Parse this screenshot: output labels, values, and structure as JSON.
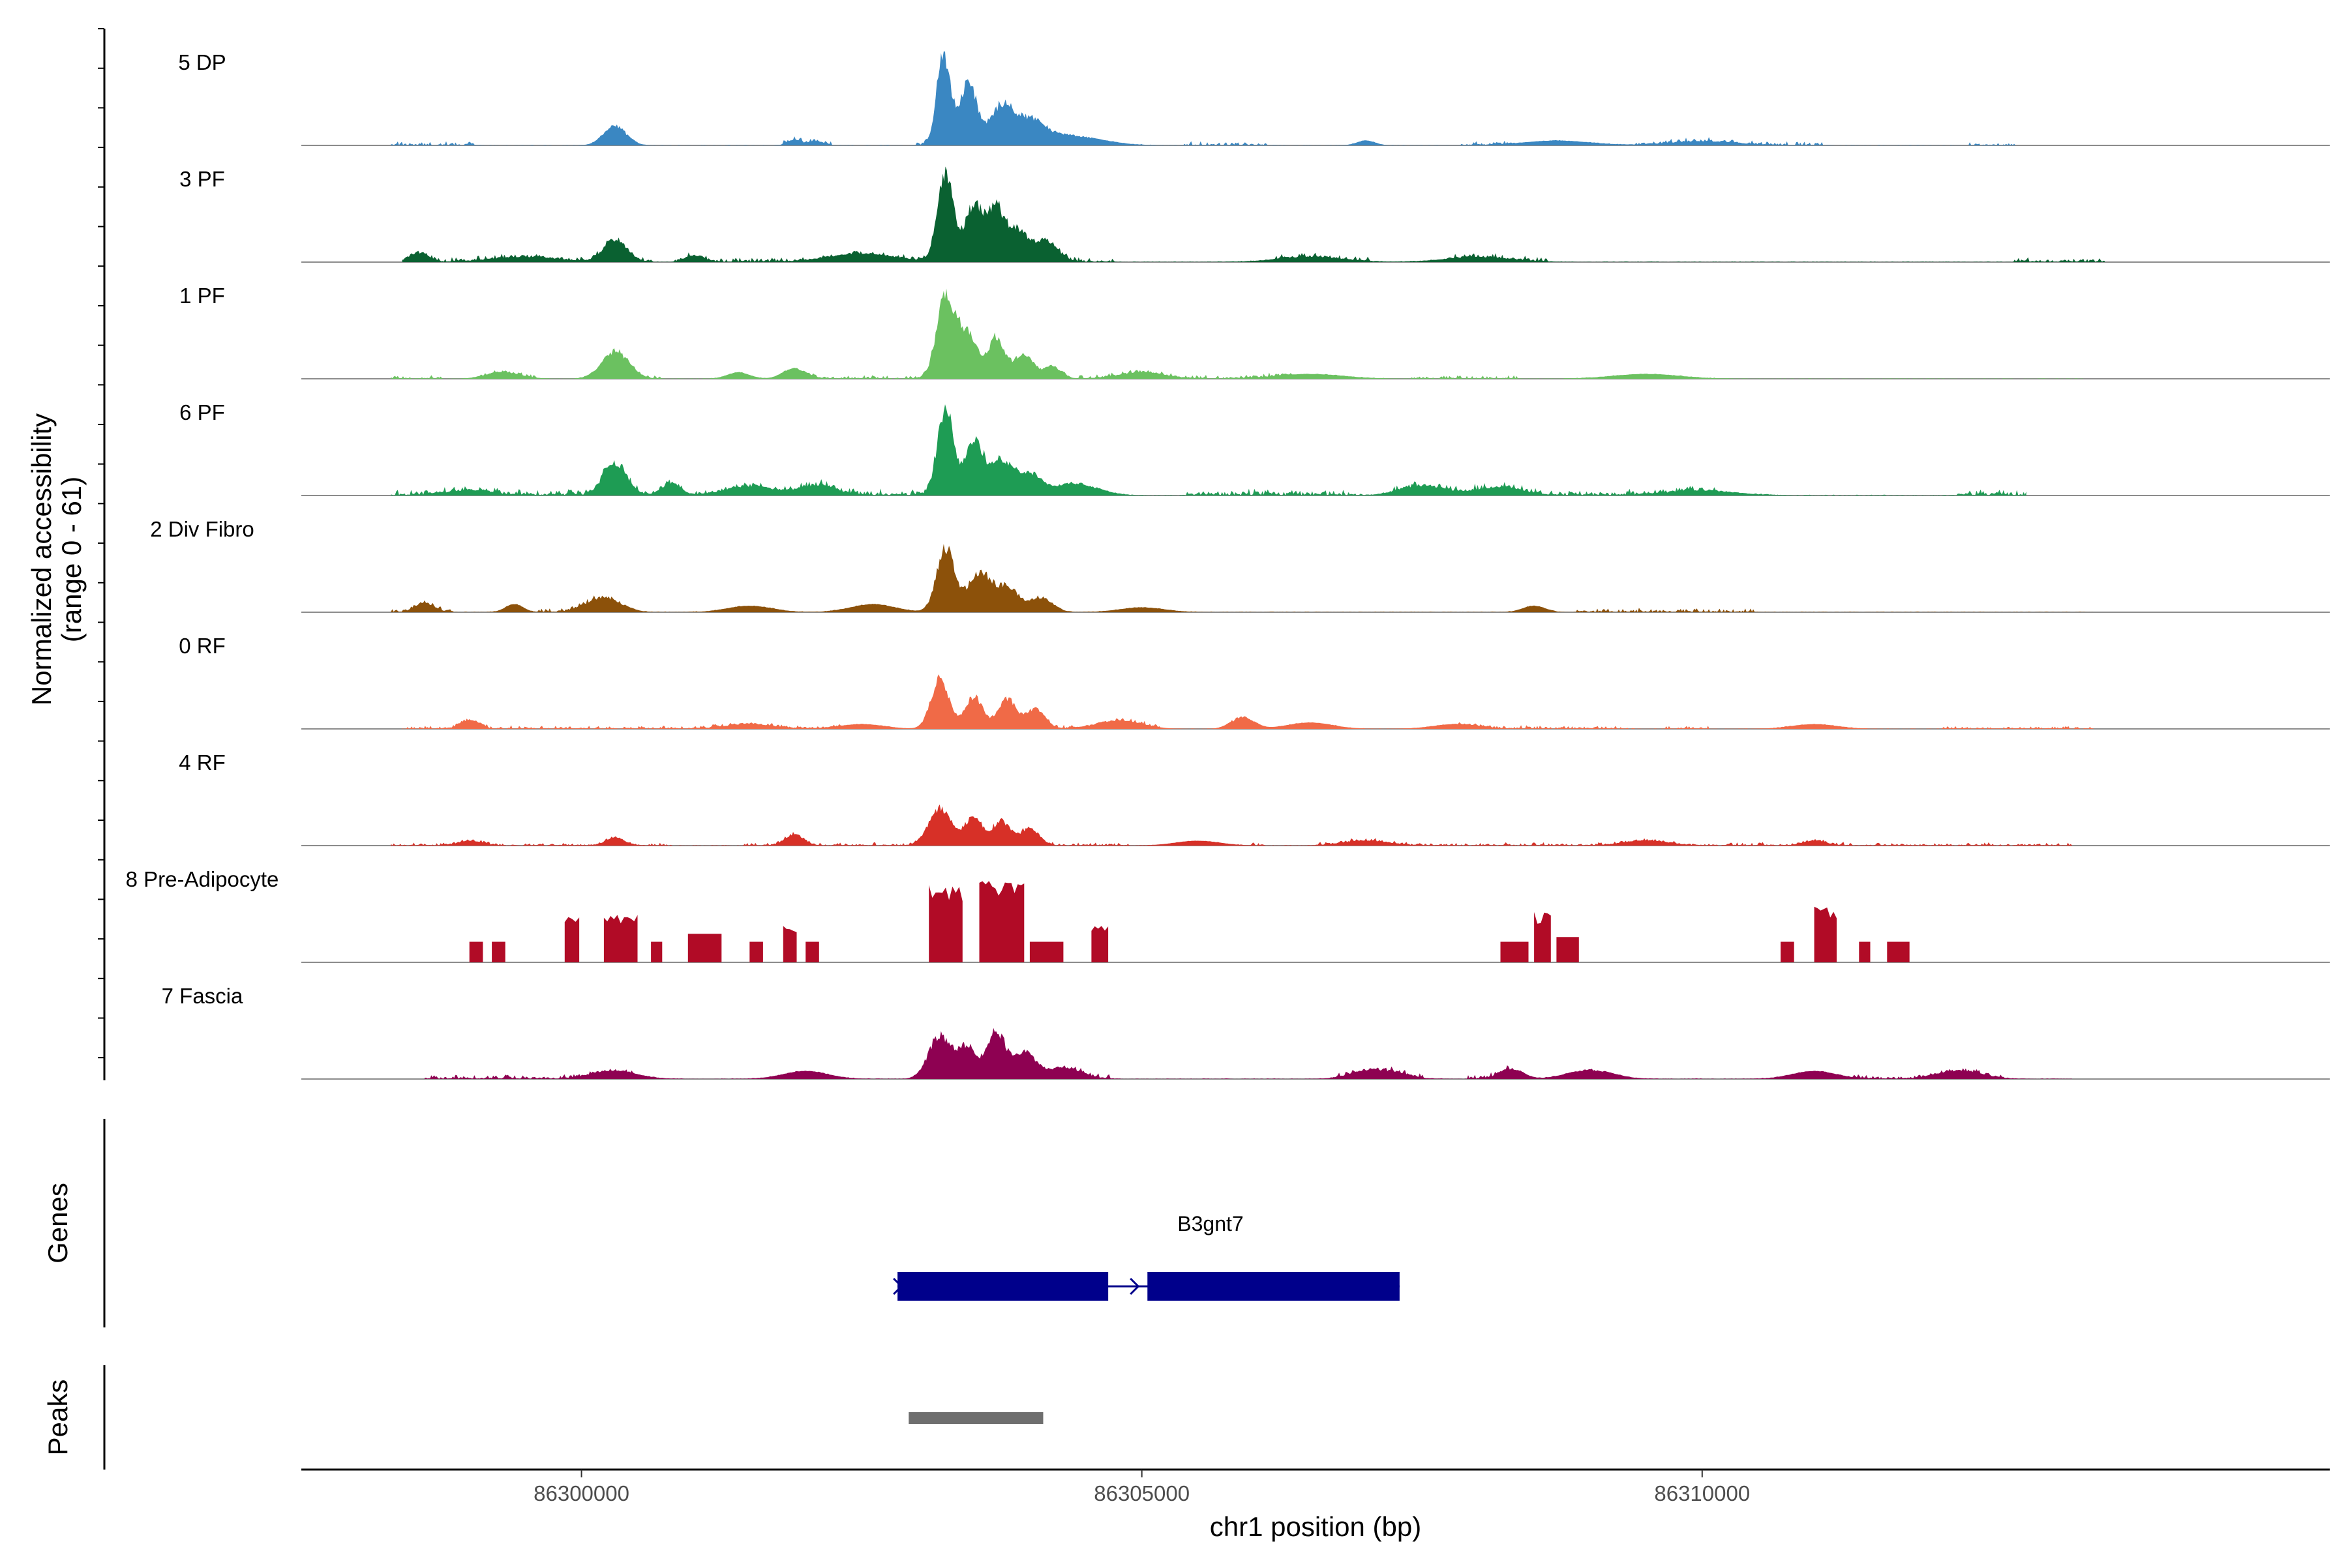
{
  "chart_data": {
    "type": "area",
    "title": "",
    "ylabel_line1": "Normalized accessibility",
    "ylabel_line2": "(range 0 - 61)",
    "yrange": [
      0,
      61
    ],
    "xlabel": "chr1 position (bp)",
    "xlim": [
      86297500,
      86315600
    ],
    "x_ticks": [
      86300000,
      86305000,
      86310000
    ],
    "x_tick_labels": [
      "86300000",
      "86305000",
      "86310000"
    ],
    "tracks": [
      {
        "name": "5 DP",
        "color": "#3A87C2",
        "mode": "smooth",
        "extent": [
          86298300,
          86312800
        ],
        "base": 0.3,
        "noise": 1.3,
        "gap_prob": 0.22,
        "peaks": [
          [
            86300300,
            100,
            13
          ],
          [
            86303230,
            60,
            61
          ],
          [
            86303450,
            80,
            42
          ],
          [
            86303750,
            100,
            26
          ],
          [
            86304000,
            120,
            14
          ],
          [
            86304300,
            300,
            7
          ],
          [
            86301900,
            60,
            3.5
          ],
          [
            86302100,
            60,
            2.5
          ],
          [
            86310000,
            300,
            2.5
          ],
          [
            86307000,
            80,
            3
          ],
          [
            86308700,
            300,
            3
          ]
        ]
      },
      {
        "name": "3 PF",
        "color": "#0A6131",
        "mode": "smooth",
        "extent": [
          86298400,
          86313600
        ],
        "base": 0.4,
        "noise": 1.4,
        "gap_prob": 0.15,
        "peaks": [
          [
            86298550,
            80,
            6
          ],
          [
            86300300,
            100,
            15
          ],
          [
            86301000,
            80,
            4
          ],
          [
            86303250,
            70,
            61
          ],
          [
            86303500,
            80,
            37
          ],
          [
            86303700,
            80,
            34
          ],
          [
            86303900,
            90,
            20
          ],
          [
            86304150,
            100,
            14
          ],
          [
            86302500,
            300,
            5
          ],
          [
            86299500,
            300,
            3
          ],
          [
            86306500,
            300,
            3
          ],
          [
            86308000,
            300,
            3
          ]
        ]
      },
      {
        "name": "1 PF",
        "color": "#6BC160",
        "mode": "smooth",
        "extent": [
          86298300,
          86313400
        ],
        "base": 0.3,
        "noise": 1.2,
        "gap_prob": 0.2,
        "peaks": [
          [
            86300300,
            120,
            18
          ],
          [
            86301900,
            100,
            7
          ],
          [
            86303250,
            80,
            57
          ],
          [
            86303450,
            80,
            30
          ],
          [
            86303700,
            80,
            26
          ],
          [
            86303950,
            80,
            17
          ],
          [
            86304200,
            80,
            8
          ],
          [
            86299300,
            150,
            4
          ],
          [
            86301400,
            100,
            4
          ],
          [
            86305000,
            200,
            4
          ],
          [
            86306500,
            300,
            3
          ],
          [
            86309500,
            300,
            3
          ]
        ]
      },
      {
        "name": "6 PF",
        "color": "#1E9C54",
        "mode": "smooth",
        "extent": [
          86298300,
          86312900
        ],
        "base": 0.6,
        "noise": 2.0,
        "gap_prob": 0.12,
        "peaks": [
          [
            86300300,
            100,
            22
          ],
          [
            86300800,
            80,
            8
          ],
          [
            86301500,
            200,
            6
          ],
          [
            86302100,
            150,
            7
          ],
          [
            86303250,
            70,
            61
          ],
          [
            86303500,
            80,
            36
          ],
          [
            86303750,
            100,
            24
          ],
          [
            86304000,
            100,
            14
          ],
          [
            86304400,
            200,
            8
          ],
          [
            86307500,
            200,
            6
          ],
          [
            86308200,
            200,
            5
          ],
          [
            86299000,
            200,
            3
          ],
          [
            86310000,
            300,
            3
          ]
        ]
      },
      {
        "name": "2 Div Fibro",
        "color": "#8C510A",
        "mode": "smooth",
        "extent": [
          86298300,
          86313500
        ],
        "base": 0.4,
        "noise": 1.3,
        "gap_prob": 0.2,
        "peaks": [
          [
            86298600,
            80,
            6
          ],
          [
            86299400,
            80,
            5
          ],
          [
            86300200,
            150,
            10
          ],
          [
            86303250,
            80,
            44
          ],
          [
            86303550,
            100,
            27
          ],
          [
            86303800,
            100,
            17
          ],
          [
            86304100,
            100,
            10
          ],
          [
            86301500,
            200,
            4
          ],
          [
            86302600,
            200,
            5
          ],
          [
            86305000,
            200,
            3
          ],
          [
            86308500,
            100,
            4
          ]
        ]
      },
      {
        "name": "0 RF",
        "color": "#F06A47",
        "mode": "smooth",
        "extent": [
          86298400,
          86313500
        ],
        "base": 0.3,
        "noise": 1.1,
        "gap_prob": 0.2,
        "peaks": [
          [
            86299000,
            80,
            6
          ],
          [
            86303200,
            80,
            34
          ],
          [
            86303500,
            80,
            22
          ],
          [
            86303800,
            80,
            20
          ],
          [
            86304050,
            80,
            14
          ],
          [
            86305900,
            100,
            8
          ],
          [
            86301500,
            200,
            3
          ],
          [
            86302500,
            200,
            3
          ],
          [
            86304800,
            200,
            5
          ],
          [
            86306500,
            200,
            4
          ],
          [
            86307800,
            200,
            3
          ],
          [
            86311000,
            200,
            3
          ]
        ]
      },
      {
        "name": "4 RF",
        "color": "#D73027",
        "mode": "smooth",
        "extent": [
          86298300,
          86313300
        ],
        "base": 0.3,
        "noise": 1.0,
        "gap_prob": 0.22,
        "peaks": [
          [
            86300300,
            80,
            5
          ],
          [
            86301900,
            80,
            7
          ],
          [
            86303200,
            100,
            25
          ],
          [
            86303500,
            80,
            18
          ],
          [
            86303750,
            80,
            16
          ],
          [
            86304000,
            80,
            12
          ],
          [
            86299000,
            100,
            3
          ],
          [
            86305500,
            200,
            3
          ],
          [
            86307000,
            200,
            3
          ],
          [
            86309500,
            200,
            3
          ],
          [
            86311000,
            100,
            3
          ]
        ]
      },
      {
        "name": "8 Pre-Adipocyte",
        "color": "#B10B26",
        "mode": "block",
        "extent": [
          86298600,
          86313300
        ],
        "base": 0,
        "noise": 0,
        "gap_prob": 0,
        "blocks": [
          [
            86299000,
            86299120,
            13
          ],
          [
            86299200,
            86299320,
            13
          ],
          [
            86299850,
            86299980,
            30
          ],
          [
            86300200,
            86300500,
            30
          ],
          [
            86300620,
            86300720,
            13
          ],
          [
            86300950,
            86301250,
            18
          ],
          [
            86301500,
            86301620,
            13
          ],
          [
            86301800,
            86301920,
            23
          ],
          [
            86302000,
            86302120,
            13
          ],
          [
            86303100,
            86303400,
            49
          ],
          [
            86303550,
            86303950,
            52
          ],
          [
            86304000,
            86304300,
            13
          ],
          [
            86304550,
            86304700,
            23
          ],
          [
            86308200,
            86308450,
            13
          ],
          [
            86308500,
            86308650,
            32
          ],
          [
            86308700,
            86308900,
            16
          ],
          [
            86310700,
            86310820,
            13
          ],
          [
            86311000,
            86311200,
            36
          ],
          [
            86311400,
            86311500,
            13
          ],
          [
            86311650,
            86311850,
            13
          ]
        ]
      },
      {
        "name": "7 Fascia",
        "color": "#8E0152",
        "mode": "smooth",
        "extent": [
          86298600,
          86313300
        ],
        "base": 0.5,
        "noise": 1.4,
        "gap_prob": 0.2,
        "peaks": [
          [
            86303200,
            100,
            30
          ],
          [
            86303450,
            80,
            22
          ],
          [
            86303700,
            80,
            32
          ],
          [
            86303950,
            100,
            18
          ],
          [
            86304300,
            150,
            8
          ],
          [
            86300300,
            200,
            5
          ],
          [
            86302000,
            200,
            5
          ],
          [
            86307100,
            200,
            6
          ],
          [
            86308300,
            100,
            7
          ],
          [
            86309000,
            200,
            6
          ],
          [
            86311000,
            200,
            5
          ],
          [
            86312300,
            200,
            5
          ]
        ]
      }
    ],
    "genes_label": "Genes",
    "gene": {
      "name": "B3gnt7",
      "start": 86302820,
      "end": 86307300,
      "strand": "+",
      "exons": [
        [
          86302820,
          86304700
        ],
        [
          86305050,
          86307300
        ]
      ]
    },
    "peaks_label": "Peaks",
    "peak_regions": [
      [
        86302920,
        86304120
      ]
    ]
  }
}
